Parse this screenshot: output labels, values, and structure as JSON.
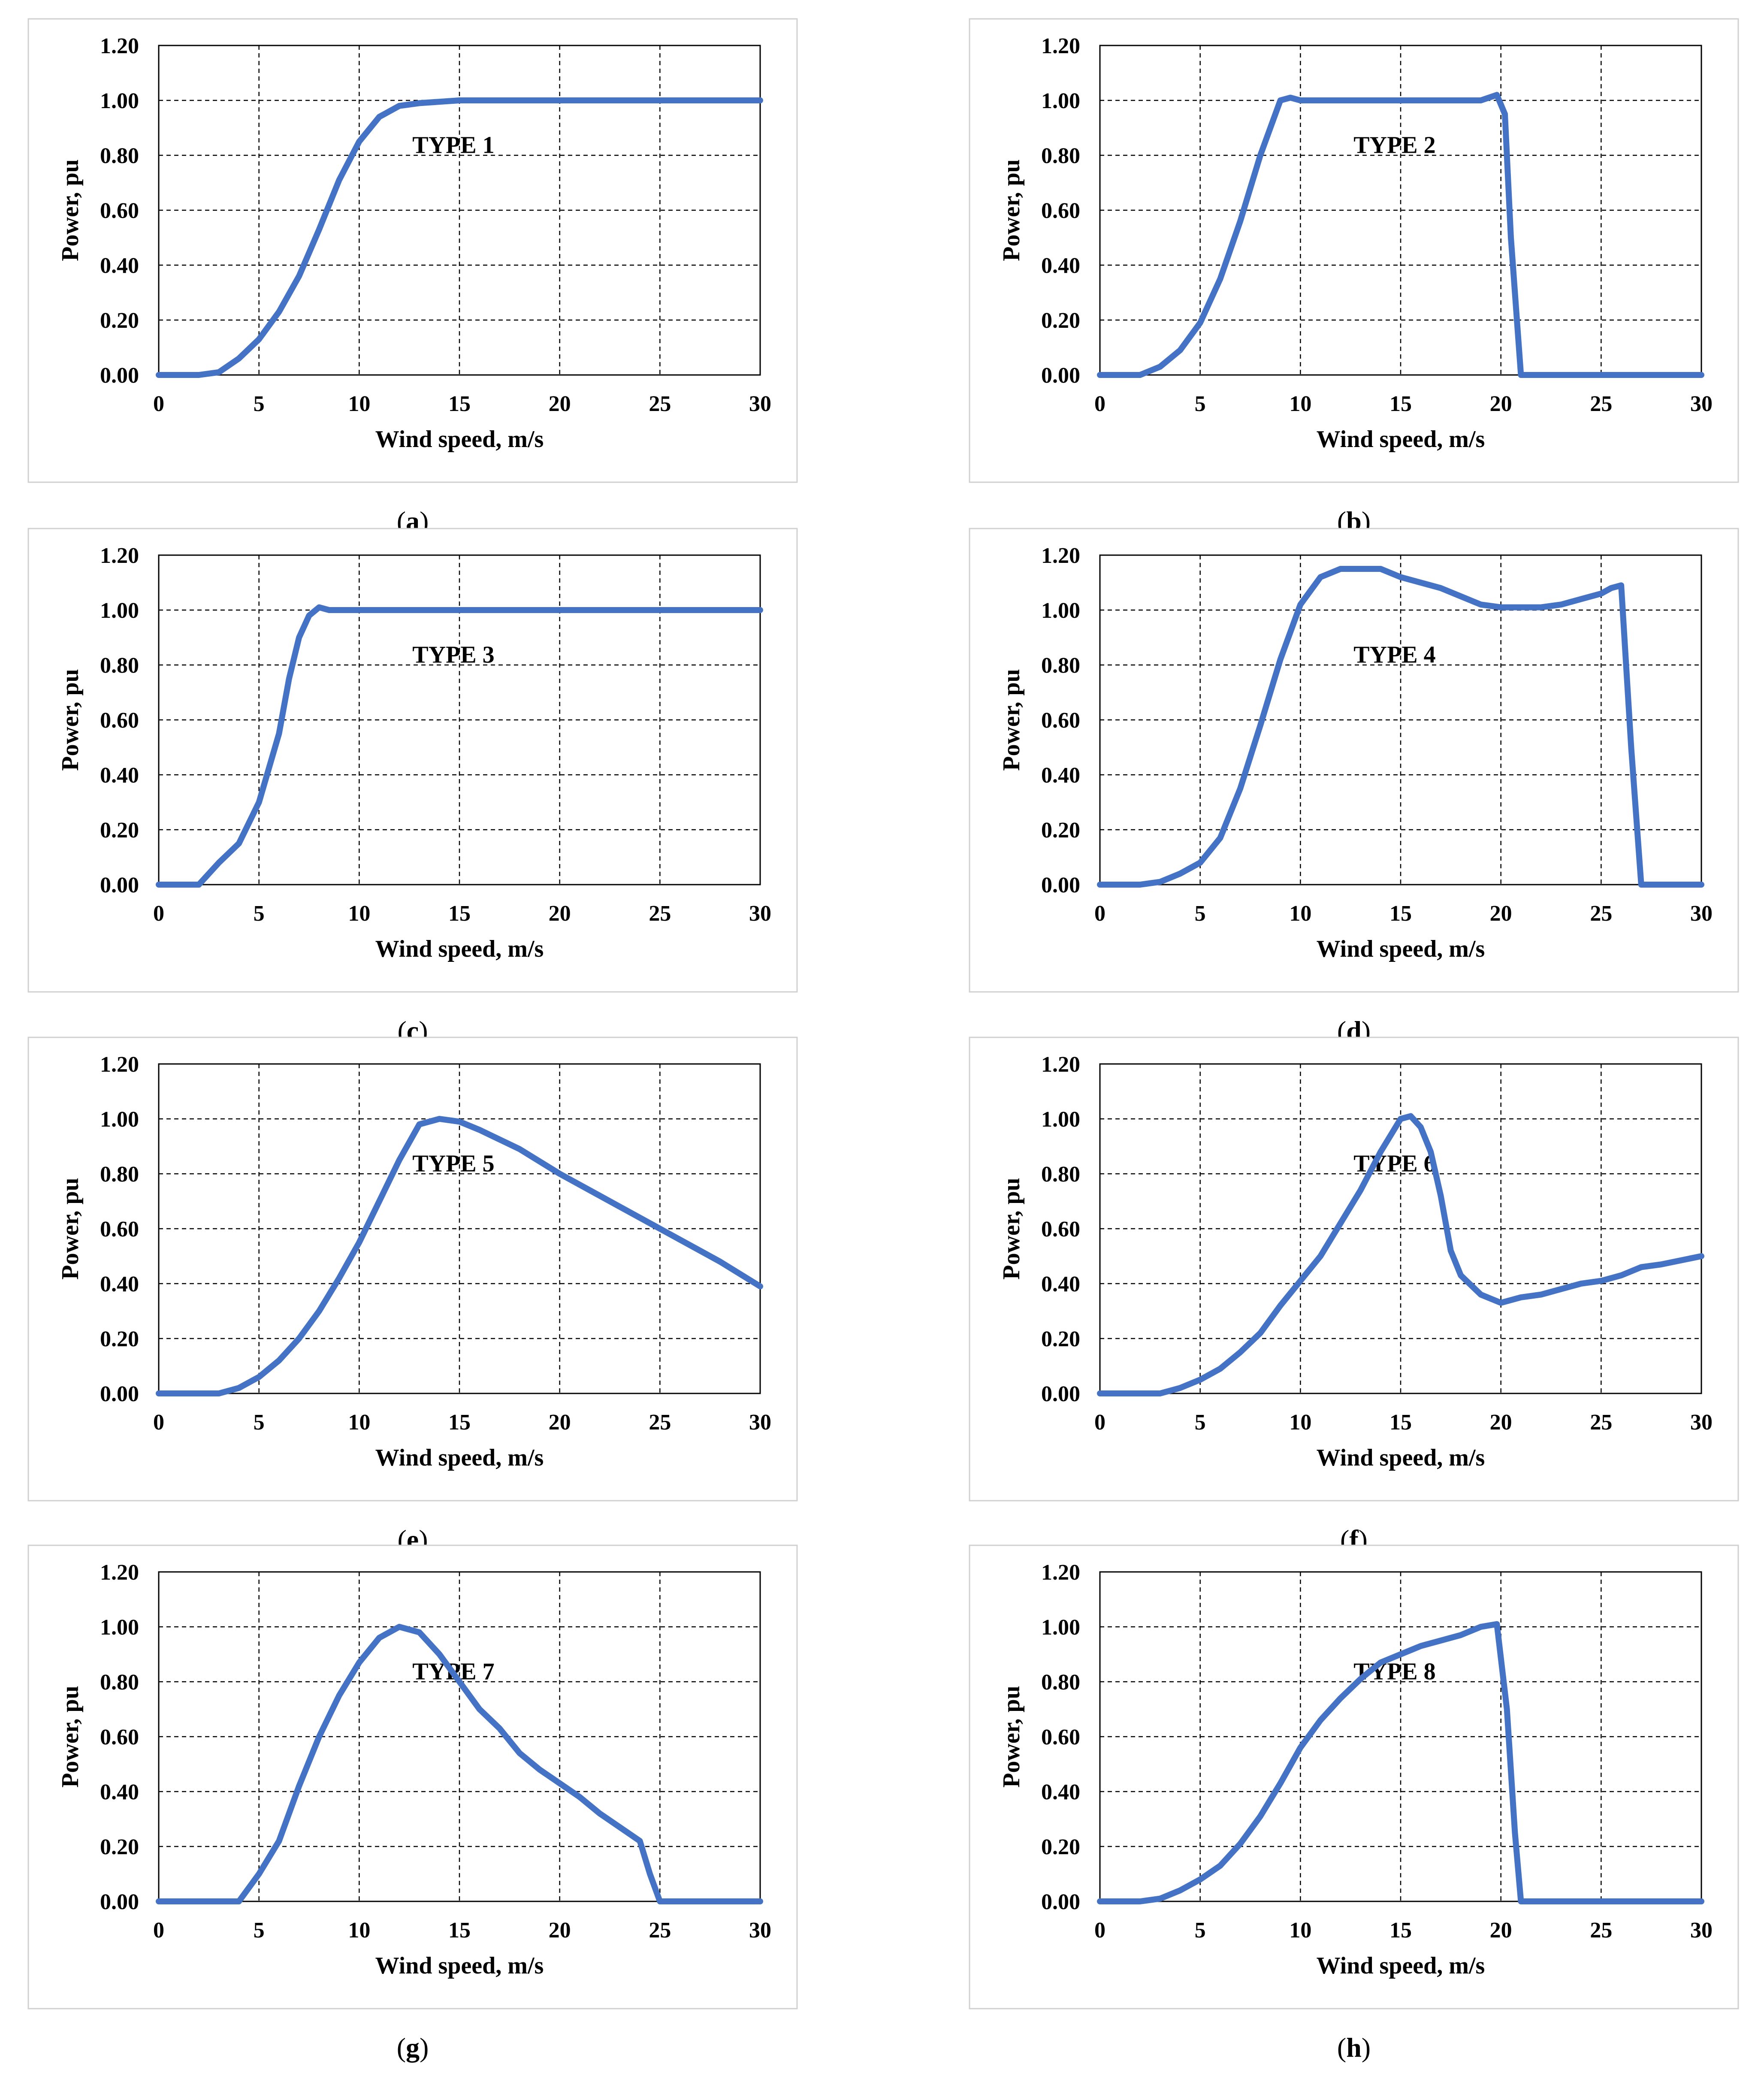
{
  "colors": {
    "line": "#4472C4",
    "grid": "#000000",
    "panel_border": "#d0d0d0",
    "background": "#ffffff"
  },
  "chart_data": [
    {
      "panel": "a",
      "caption": "(a)",
      "type": "line",
      "annotation": "TYPE 1",
      "xlabel": "Wind speed, m/s",
      "ylabel": "Power, pu",
      "xlim": [
        0,
        30
      ],
      "ylim": [
        0,
        1.2
      ],
      "xticks": [
        "0",
        "5",
        "10",
        "15",
        "20",
        "25",
        "30"
      ],
      "yticks": [
        "0.00",
        "0.20",
        "0.40",
        "0.60",
        "0.80",
        "1.00",
        "1.20"
      ],
      "grid": true,
      "legend": "none",
      "series": [
        {
          "x": [
            0,
            2,
            3,
            4,
            5,
            6,
            7,
            8,
            9,
            10,
            11,
            12,
            13,
            14,
            15,
            16,
            18,
            20,
            25,
            30
          ],
          "y": [
            0,
            0,
            0.01,
            0.06,
            0.13,
            0.23,
            0.36,
            0.53,
            0.71,
            0.85,
            0.94,
            0.98,
            0.99,
            0.995,
            1.0,
            1.0,
            1.0,
            1.0,
            1.0,
            1.0
          ]
        }
      ]
    },
    {
      "panel": "b",
      "caption": "(b)",
      "type": "line",
      "annotation": "TYPE 2",
      "xlabel": "Wind speed, m/s",
      "ylabel": "Power, pu",
      "xlim": [
        0,
        30
      ],
      "ylim": [
        0,
        1.2
      ],
      "xticks": [
        "0",
        "5",
        "10",
        "15",
        "20",
        "25",
        "30"
      ],
      "yticks": [
        "0.00",
        "0.20",
        "0.40",
        "0.60",
        "0.80",
        "1.00",
        "1.20"
      ],
      "grid": true,
      "legend": "none",
      "series": [
        {
          "x": [
            0,
            2,
            3,
            4,
            5,
            6,
            7,
            8,
            9,
            9.5,
            10,
            12,
            15,
            18,
            19,
            19.8,
            20.2,
            20.5,
            21,
            22,
            25,
            30
          ],
          "y": [
            0,
            0,
            0.03,
            0.09,
            0.19,
            0.35,
            0.56,
            0.8,
            1.0,
            1.01,
            1.0,
            1.0,
            1.0,
            1.0,
            1.0,
            1.02,
            0.95,
            0.5,
            0,
            0,
            0,
            0
          ]
        }
      ]
    },
    {
      "panel": "c",
      "caption": "(c)",
      "type": "line",
      "annotation": "TYPE 3",
      "xlabel": "Wind speed, m/s",
      "ylabel": "Power, pu",
      "xlim": [
        0,
        30
      ],
      "ylim": [
        0,
        1.2
      ],
      "xticks": [
        "0",
        "5",
        "10",
        "15",
        "20",
        "25",
        "30"
      ],
      "yticks": [
        "0.00",
        "0.20",
        "0.40",
        "0.60",
        "0.80",
        "1.00",
        "1.20"
      ],
      "grid": true,
      "legend": "none",
      "series": [
        {
          "x": [
            0,
            1,
            2,
            3,
            4,
            5,
            6,
            6.5,
            7,
            7.5,
            8,
            8.5,
            9,
            10,
            15,
            20,
            25,
            30
          ],
          "y": [
            0,
            0,
            0,
            0.08,
            0.15,
            0.3,
            0.55,
            0.75,
            0.9,
            0.98,
            1.01,
            1.0,
            1.0,
            1.0,
            1.0,
            1.0,
            1.0,
            1.0
          ]
        }
      ]
    },
    {
      "panel": "d",
      "caption": "(d)",
      "type": "line",
      "annotation": "TYPE 4",
      "xlabel": "Wind speed, m/s",
      "ylabel": "Power, pu",
      "xlim": [
        0,
        30
      ],
      "ylim": [
        0,
        1.2
      ],
      "xticks": [
        "0",
        "5",
        "10",
        "15",
        "20",
        "25",
        "30"
      ],
      "yticks": [
        "0.00",
        "0.20",
        "0.40",
        "0.60",
        "0.80",
        "1.00",
        "1.20"
      ],
      "grid": true,
      "legend": "none",
      "series": [
        {
          "x": [
            0,
            2,
            3,
            4,
            5,
            6,
            7,
            8,
            9,
            10,
            11,
            12,
            13,
            14,
            15,
            16,
            17,
            18,
            19,
            20,
            21,
            22,
            23,
            24,
            25,
            25.5,
            26,
            26.5,
            27,
            28,
            30
          ],
          "y": [
            0,
            0,
            0.01,
            0.04,
            0.08,
            0.17,
            0.35,
            0.58,
            0.82,
            1.02,
            1.12,
            1.15,
            1.15,
            1.15,
            1.12,
            1.1,
            1.08,
            1.05,
            1.02,
            1.01,
            1.01,
            1.01,
            1.02,
            1.04,
            1.06,
            1.08,
            1.09,
            0.5,
            0,
            0,
            0
          ]
        }
      ]
    },
    {
      "panel": "e",
      "caption": "(e)",
      "type": "line",
      "annotation": "TYPE 5",
      "xlabel": "Wind speed, m/s",
      "ylabel": "Power, pu",
      "xlim": [
        0,
        30
      ],
      "ylim": [
        0,
        1.2
      ],
      "xticks": [
        "0",
        "5",
        "10",
        "15",
        "20",
        "25",
        "30"
      ],
      "yticks": [
        "0.00",
        "0.20",
        "0.40",
        "0.60",
        "0.80",
        "1.00",
        "1.20"
      ],
      "grid": true,
      "legend": "none",
      "series": [
        {
          "x": [
            0,
            2,
            3,
            4,
            5,
            6,
            7,
            8,
            9,
            10,
            11,
            12,
            13,
            14,
            15,
            16,
            18,
            20,
            22,
            25,
            28,
            30
          ],
          "y": [
            0,
            0,
            0,
            0.02,
            0.06,
            0.12,
            0.2,
            0.3,
            0.42,
            0.55,
            0.7,
            0.85,
            0.98,
            1.0,
            0.99,
            0.96,
            0.89,
            0.8,
            0.72,
            0.6,
            0.48,
            0.39
          ]
        }
      ]
    },
    {
      "panel": "f",
      "caption": "(f)",
      "type": "line",
      "annotation": "TYPE 6",
      "xlabel": "Wind speed, m/s",
      "ylabel": "Power, pu",
      "xlim": [
        0,
        30
      ],
      "ylim": [
        0,
        1.2
      ],
      "xticks": [
        "0",
        "5",
        "10",
        "15",
        "20",
        "25",
        "30"
      ],
      "yticks": [
        "0.00",
        "0.20",
        "0.40",
        "0.60",
        "0.80",
        "1.00",
        "1.20"
      ],
      "grid": true,
      "legend": "none",
      "series": [
        {
          "x": [
            0,
            3,
            4,
            5,
            6,
            7,
            8,
            9,
            10,
            11,
            12,
            13,
            14,
            15,
            15.5,
            16,
            16.5,
            17,
            17.5,
            18,
            19,
            20,
            21,
            22,
            23,
            24,
            25,
            26,
            27,
            28,
            30
          ],
          "y": [
            0,
            0,
            0.02,
            0.05,
            0.09,
            0.15,
            0.22,
            0.32,
            0.41,
            0.5,
            0.62,
            0.74,
            0.88,
            1.0,
            1.01,
            0.97,
            0.88,
            0.72,
            0.52,
            0.43,
            0.36,
            0.33,
            0.35,
            0.36,
            0.38,
            0.4,
            0.41,
            0.43,
            0.46,
            0.47,
            0.5
          ]
        }
      ]
    },
    {
      "panel": "g",
      "caption": "(g)",
      "type": "line",
      "annotation": "TYPE 7",
      "xlabel": "Wind speed, m/s",
      "ylabel": "Power, pu",
      "xlim": [
        0,
        30
      ],
      "ylim": [
        0,
        1.2
      ],
      "xticks": [
        "0",
        "5",
        "10",
        "15",
        "20",
        "25",
        "30"
      ],
      "yticks": [
        "0.00",
        "0.20",
        "0.40",
        "0.60",
        "0.80",
        "1.00",
        "1.20"
      ],
      "grid": true,
      "legend": "none",
      "series": [
        {
          "x": [
            0,
            3,
            4,
            5,
            6,
            7,
            8,
            9,
            10,
            11,
            12,
            13,
            14,
            15,
            16,
            17,
            18,
            19,
            20,
            21,
            22,
            23,
            24,
            24.5,
            25,
            26,
            30
          ],
          "y": [
            0,
            0,
            0,
            0.1,
            0.22,
            0.42,
            0.6,
            0.75,
            0.87,
            0.96,
            1.0,
            0.98,
            0.9,
            0.8,
            0.7,
            0.63,
            0.54,
            0.48,
            0.43,
            0.38,
            0.32,
            0.27,
            0.22,
            0.1,
            0,
            0,
            0
          ]
        }
      ]
    },
    {
      "panel": "h",
      "caption": "(h)",
      "type": "line",
      "annotation": "TYPE 8",
      "xlabel": "Wind speed, m/s",
      "ylabel": "Power, pu",
      "xlim": [
        0,
        30
      ],
      "ylim": [
        0,
        1.2
      ],
      "xticks": [
        "0",
        "5",
        "10",
        "15",
        "20",
        "25",
        "30"
      ],
      "yticks": [
        "0.00",
        "0.20",
        "0.40",
        "0.60",
        "0.80",
        "1.00",
        "1.20"
      ],
      "grid": true,
      "legend": "none",
      "series": [
        {
          "x": [
            0,
            2,
            3,
            4,
            5,
            6,
            7,
            8,
            9,
            10,
            11,
            12,
            13,
            14,
            15,
            16,
            17,
            18,
            19,
            19.8,
            20.3,
            20.7,
            21,
            22,
            25,
            30
          ],
          "y": [
            0,
            0,
            0.01,
            0.04,
            0.08,
            0.13,
            0.21,
            0.31,
            0.43,
            0.56,
            0.66,
            0.74,
            0.81,
            0.87,
            0.9,
            0.93,
            0.95,
            0.97,
            1.0,
            1.01,
            0.7,
            0.25,
            0,
            0,
            0,
            0
          ]
        }
      ]
    }
  ]
}
